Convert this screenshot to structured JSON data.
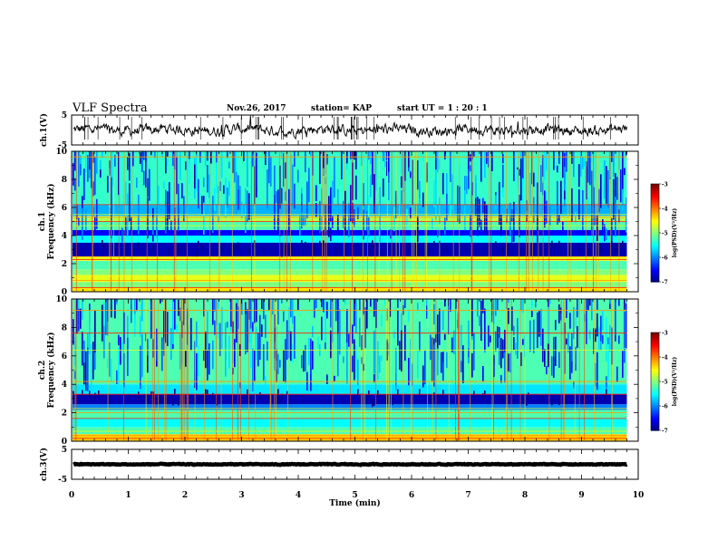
{
  "header": {
    "title": "VLF Spectra",
    "date": "Nov.26, 2017",
    "station": "station= KAP",
    "start_ut": "start  UT =   1 : 20 : 1"
  },
  "chart_data": [
    {
      "type": "line",
      "name": "ch1-waveform",
      "ylabel": "ch.1(V)",
      "ylim": [
        -5,
        5
      ],
      "yticks": [
        "5",
        "-5"
      ],
      "xlim": [
        0,
        10
      ],
      "x_end": 9.8,
      "mean": 0,
      "amplitude": 1.9
    },
    {
      "type": "heatmap",
      "name": "ch1-spectrogram",
      "ylabel": "ch.1\nFrequency (kHz)",
      "xlim": [
        0,
        10
      ],
      "ylim": [
        0,
        10
      ],
      "yticks": [
        "0",
        "2",
        "4",
        "6",
        "8",
        "10"
      ],
      "x_end": 9.8,
      "colorbar": {
        "label": "log(PSD)(V²/Hz)",
        "range": [
          -7,
          -3
        ],
        "ticks": [
          "-3",
          "-4",
          "-5",
          "-6",
          "-7"
        ]
      },
      "bands": [
        {
          "f0": 0.0,
          "f1": 0.3,
          "level": -4.4
        },
        {
          "f0": 0.3,
          "f1": 0.7,
          "level": -5.0
        },
        {
          "f0": 0.7,
          "f1": 1.2,
          "level": -4.6
        },
        {
          "f0": 1.2,
          "f1": 1.6,
          "level": -5.0
        },
        {
          "f0": 1.6,
          "f1": 2.2,
          "level": -5.2
        },
        {
          "f0": 2.2,
          "f1": 2.5,
          "level": -4.6
        },
        {
          "f0": 2.5,
          "f1": 3.5,
          "level": -6.8
        },
        {
          "f0": 3.5,
          "f1": 4.0,
          "level": -5.5
        },
        {
          "f0": 4.0,
          "f1": 4.4,
          "level": -6.5
        },
        {
          "f0": 4.4,
          "f1": 5.0,
          "level": -5.2
        },
        {
          "f0": 5.0,
          "f1": 5.4,
          "level": -4.8
        },
        {
          "f0": 5.4,
          "f1": 6.2,
          "level": -5.8
        },
        {
          "f0": 6.2,
          "f1": 10.0,
          "level": -5.3
        }
      ]
    },
    {
      "type": "heatmap",
      "name": "ch2-spectrogram",
      "ylabel": "ch.2\nFrequency (kHz)",
      "xlim": [
        0,
        10
      ],
      "ylim": [
        0,
        10
      ],
      "yticks": [
        "0",
        "2",
        "4",
        "6",
        "8",
        "10"
      ],
      "x_end": 9.8,
      "colorbar": {
        "label": "log(PSD)(V²/Hz)",
        "range": [
          -7,
          -3
        ],
        "ticks": [
          "-3",
          "-4",
          "-5",
          "-6",
          "-7"
        ]
      },
      "bands": [
        {
          "f0": 0.0,
          "f1": 0.5,
          "level": -4.3
        },
        {
          "f0": 0.5,
          "f1": 1.0,
          "level": -5.2
        },
        {
          "f0": 1.0,
          "f1": 1.6,
          "level": -5.5
        },
        {
          "f0": 1.6,
          "f1": 2.2,
          "level": -5.2
        },
        {
          "f0": 2.2,
          "f1": 2.6,
          "level": -6.0
        },
        {
          "f0": 2.6,
          "f1": 3.3,
          "level": -6.8
        },
        {
          "f0": 3.3,
          "f1": 4.0,
          "level": -5.6
        },
        {
          "f0": 4.0,
          "f1": 10.0,
          "level": -5.2
        }
      ]
    },
    {
      "type": "line",
      "name": "ch3-waveform",
      "ylabel": "ch.3(V)",
      "ylim": [
        -5,
        5
      ],
      "yticks": [
        "5",
        "-5"
      ],
      "xlim": [
        0,
        10
      ],
      "x_end": 9.8,
      "mean": 0,
      "amplitude": 0.15
    }
  ],
  "time_axis": {
    "label": "Time  (min)",
    "ticks": [
      "0",
      "1",
      "2",
      "3",
      "4",
      "5",
      "6",
      "7",
      "8",
      "9",
      "10"
    ]
  }
}
